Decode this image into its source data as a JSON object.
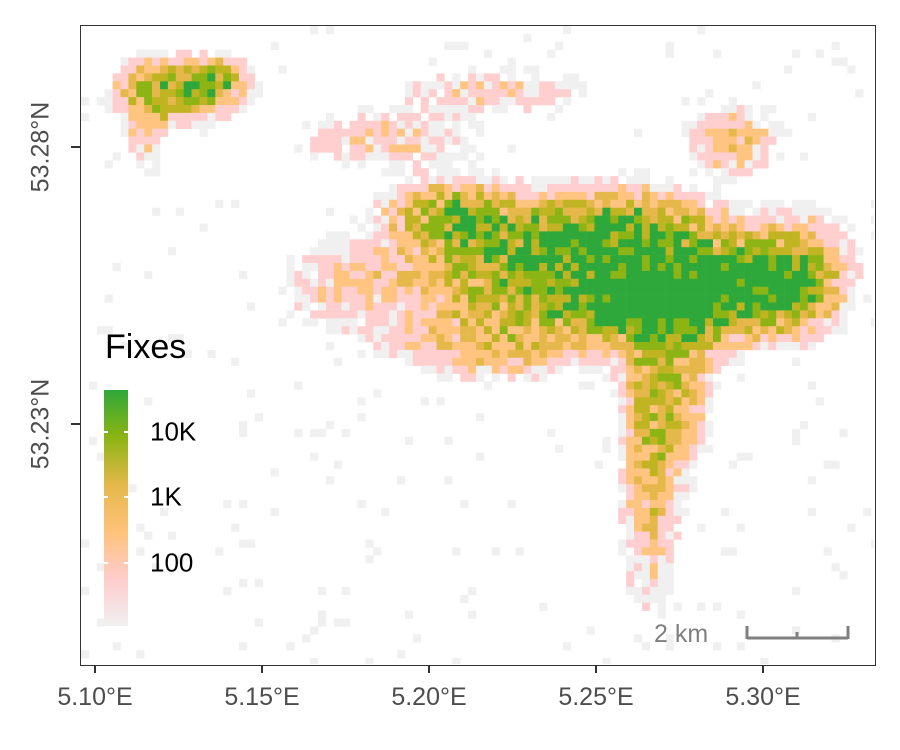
{
  "map": {
    "x_axis": {
      "ticks": [
        {
          "label": "5.10°E",
          "value": 5.1
        },
        {
          "label": "5.15°E",
          "value": 5.15
        },
        {
          "label": "5.20°E",
          "value": 5.2
        },
        {
          "label": "5.25°E",
          "value": 5.25
        },
        {
          "label": "5.30°E",
          "value": 5.3
        }
      ],
      "range": [
        5.096,
        5.335
      ]
    },
    "y_axis": {
      "ticks": [
        {
          "label": "53.28°N",
          "value": 53.28
        },
        {
          "label": "53.23°N",
          "value": 53.23
        }
      ],
      "range": [
        53.189,
        53.302
      ]
    },
    "legend": {
      "title": "Fixes",
      "labels": [
        {
          "text": "10K",
          "value": 10000
        },
        {
          "text": "1K",
          "value": 1000
        },
        {
          "text": "100",
          "value": 100
        }
      ],
      "scale": "log",
      "colors": [
        "#f0f0f0",
        "#ffcccc",
        "#ffc27a",
        "#e4b84a",
        "#8cb414",
        "#2ea83a"
      ]
    },
    "scale_bar": {
      "label": "2 km"
    },
    "colors": {
      "panel_border": "#333333",
      "axis_text": "#4d4d4d",
      "scale_bar": "#808080"
    }
  }
}
